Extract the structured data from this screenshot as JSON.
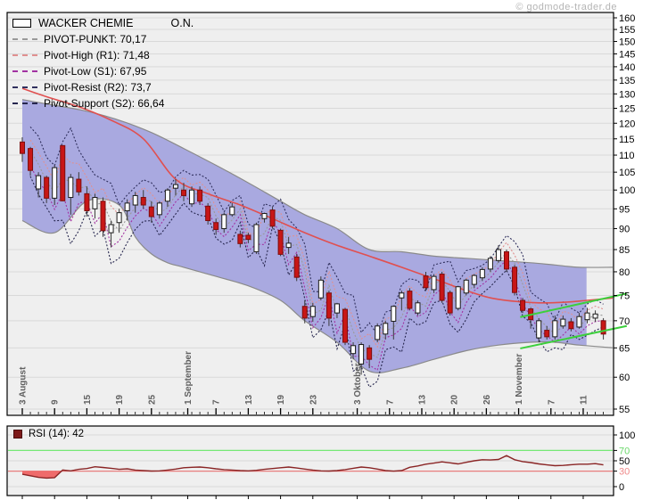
{
  "watermark": "© godmode-trader.de",
  "colors": {
    "panel_bg": "#efefef",
    "panel_border": "#000000",
    "grid": "#d9d9d9",
    "band_fill": "#a9a9e0",
    "band_edge": "#8a8a8a",
    "ma_line": "#e05050",
    "candle_up": "#ffffff",
    "candle_down": "#c81616",
    "candle_stroke": "#1a1a1a",
    "wick": "#3a3a3a",
    "green_trend": "#3ccf3c",
    "pivot_pp": "#9a9a9a",
    "pivot_r1": "#e09090",
    "pivot_s1": "#a232a2",
    "pivot_r2": "#30305e",
    "pivot_s2": "#26264e",
    "rsi_line": "#8a2525",
    "rsi_fill": "#ef6b6b",
    "rsi_line70": "#76e876",
    "rsi_line30": "#e87d7d",
    "rsi_label70": "#6bd96b",
    "rsi_label30": "#ef8a8a",
    "axis_text": "#000000",
    "date_text": "#606060"
  },
  "legend": {
    "title": "WACKER CHEMIE",
    "title_suffix": "O.N.",
    "items": [
      {
        "label": "PIVOT-PUNKT: 70,17",
        "color": "#9a9a9a"
      },
      {
        "label": "Pivot-High (R1): 71,48",
        "color": "#e09090"
      },
      {
        "label": "Pivot-Low (S1): 67,95",
        "color": "#a232a2"
      },
      {
        "label": "Pivot-Resist (R2): 73,7",
        "color": "#30305e"
      },
      {
        "label": "Pivot-Support (S2): 66,64",
        "color": "#26264e"
      }
    ]
  },
  "rsi_legend": "RSI (14): 42",
  "chart_data": [
    {
      "type": "candlestick",
      "title": "WACKER CHEMIE O.N.",
      "y_scale": "log",
      "ylim": [
        55,
        160
      ],
      "y_tick_step": 5,
      "grid": true,
      "x_ticks": [
        {
          "pos": 1,
          "label": "3 August"
        },
        {
          "pos": 5,
          "label": "9"
        },
        {
          "pos": 9,
          "label": "15"
        },
        {
          "pos": 13,
          "label": "19"
        },
        {
          "pos": 17,
          "label": "25"
        },
        {
          "pos": 21.5,
          "label": "1 September"
        },
        {
          "pos": 25,
          "label": "7"
        },
        {
          "pos": 29,
          "label": "13"
        },
        {
          "pos": 33,
          "label": "19"
        },
        {
          "pos": 37,
          "label": "23"
        },
        {
          "pos": 42.5,
          "label": "3 Oktober"
        },
        {
          "pos": 46.5,
          "label": "7"
        },
        {
          "pos": 50.5,
          "label": "13"
        },
        {
          "pos": 54.5,
          "label": "20"
        },
        {
          "pos": 58.5,
          "label": "26"
        },
        {
          "pos": 62.5,
          "label": "1 November"
        },
        {
          "pos": 66.5,
          "label": "7"
        },
        {
          "pos": 70.5,
          "label": "11"
        }
      ],
      "candles": [
        [
          114,
          115.5,
          108,
          110.5
        ],
        [
          112,
          112.5,
          104,
          105.5
        ],
        [
          100.3,
          105,
          98,
          104
        ],
        [
          103.5,
          104,
          96.5,
          97.8
        ],
        [
          97.8,
          107,
          96,
          106.3
        ],
        [
          112.9,
          113,
          97,
          97.1
        ],
        [
          98,
          104.5,
          93.5,
          103.5
        ],
        [
          103,
          105,
          98.5,
          99.5
        ],
        [
          99,
          101,
          93,
          94.5
        ],
        [
          95,
          99,
          92.5,
          98
        ],
        [
          97,
          98,
          88,
          89.5
        ],
        [
          89,
          92,
          85.5,
          91
        ],
        [
          91.5,
          95,
          89,
          94
        ],
        [
          94.5,
          97.5,
          92,
          96.5
        ],
        [
          96,
          99.5,
          94,
          98.5
        ],
        [
          98,
          100,
          95,
          96
        ],
        [
          95.5,
          97,
          91.5,
          93
        ],
        [
          93.5,
          97,
          92.5,
          96.5
        ],
        [
          97,
          100.5,
          95.5,
          100
        ],
        [
          100.5,
          103,
          98.5,
          101.5
        ],
        [
          100,
          102,
          97,
          98.5
        ],
        [
          96.3,
          101,
          95.5,
          100
        ],
        [
          100,
          101,
          96,
          97
        ],
        [
          95.7,
          96.5,
          91,
          92
        ],
        [
          91.5,
          92.5,
          88.5,
          89.8
        ],
        [
          90,
          94,
          89,
          93.5
        ],
        [
          93.5,
          96.5,
          93,
          95.5
        ],
        [
          88.6,
          89.5,
          85.5,
          86.4
        ],
        [
          88.4,
          89,
          86.5,
          87.4
        ],
        [
          84.5,
          91.5,
          84,
          91
        ],
        [
          92.5,
          94,
          91.5,
          93.8
        ],
        [
          94.7,
          95.5,
          90,
          90.6
        ],
        [
          89.6,
          90,
          83.5,
          83.9
        ],
        [
          85.5,
          88,
          84,
          86.5
        ],
        [
          83.3,
          84,
          78,
          78.8
        ],
        [
          72.8,
          74,
          69.5,
          70.5
        ],
        [
          70.8,
          73.5,
          69.8,
          72.8
        ],
        [
          74.5,
          79,
          74,
          78.2
        ],
        [
          75.5,
          76,
          69,
          70.5
        ],
        [
          71.5,
          73.5,
          70.5,
          73.3
        ],
        [
          72.2,
          72.5,
          65.5,
          66
        ],
        [
          64,
          66,
          63,
          65.4
        ],
        [
          62.2,
          66,
          60.4,
          65.6
        ],
        [
          65,
          65.5,
          61.5,
          63
        ],
        [
          66.5,
          69.5,
          66,
          69
        ],
        [
          67.5,
          70,
          66.5,
          69.5
        ],
        [
          69.9,
          73,
          66.5,
          72.8
        ],
        [
          74.5,
          76,
          72,
          75.5
        ],
        [
          75.9,
          76.5,
          72,
          72.4
        ],
        [
          71.5,
          74,
          71,
          73.5
        ],
        [
          79.1,
          80,
          76,
          76.6
        ],
        [
          76.2,
          79.5,
          75.5,
          79
        ],
        [
          79.5,
          80,
          73.5,
          74
        ],
        [
          75.6,
          76,
          71,
          71.5
        ],
        [
          72.4,
          77,
          72,
          76.8
        ],
        [
          75.5,
          78.5,
          75,
          78.2
        ],
        [
          77.3,
          79.5,
          76.5,
          79.2
        ],
        [
          78.7,
          81,
          78,
          80.5
        ],
        [
          80.6,
          83.5,
          80,
          83
        ],
        [
          82.5,
          86,
          82,
          85
        ],
        [
          84.5,
          85,
          80,
          80.6
        ],
        [
          81,
          81.5,
          75,
          75.6
        ],
        [
          74,
          74.5,
          71.5,
          72
        ],
        [
          72.3,
          72.5,
          68.5,
          70.2
        ],
        [
          66.8,
          70.5,
          66,
          70
        ],
        [
          68.2,
          69,
          66.5,
          67
        ],
        [
          67,
          71,
          66.5,
          70
        ],
        [
          69,
          71,
          68.5,
          70.3
        ],
        [
          69.8,
          70.5,
          68,
          68.5
        ],
        [
          68.8,
          71.5,
          68.5,
          70.8
        ],
        [
          70.2,
          72.5,
          69.5,
          71.5
        ],
        [
          70.5,
          72,
          69.8,
          71.3
        ],
        [
          70,
          70.5,
          66.5,
          67.5
        ]
      ],
      "overlays": {
        "pivot_values": {
          "pp": "70,17",
          "r1": "71,48",
          "s1": "67,95",
          "r2": "73,7",
          "s2": "66,64"
        },
        "ma": [
          [
            1,
            132
          ],
          [
            4,
            129
          ],
          [
            8,
            125.5
          ],
          [
            12,
            121
          ],
          [
            16,
            115
          ],
          [
            20,
            103
          ],
          [
            24,
            99
          ],
          [
            28,
            96
          ],
          [
            32,
            92.5
          ],
          [
            36,
            89
          ],
          [
            40,
            86
          ],
          [
            44,
            83.5
          ],
          [
            48,
            81
          ],
          [
            52,
            78.5
          ],
          [
            56,
            76
          ],
          [
            59,
            74.5
          ],
          [
            62,
            73.8
          ],
          [
            65,
            73.5
          ],
          [
            68,
            73.6
          ],
          [
            71,
            74
          ],
          [
            74.3,
            74.5
          ]
        ],
        "band_upper": [
          [
            1,
            128
          ],
          [
            5,
            126
          ],
          [
            9,
            124
          ],
          [
            13,
            121
          ],
          [
            17,
            117
          ],
          [
            21,
            112
          ],
          [
            25,
            107
          ],
          [
            29,
            102
          ],
          [
            33,
            97
          ],
          [
            36,
            93.5
          ],
          [
            40,
            90
          ],
          [
            44,
            85
          ],
          [
            48,
            84.5
          ],
          [
            52,
            83.5
          ],
          [
            56,
            83
          ],
          [
            60,
            82.5
          ],
          [
            64,
            82
          ],
          [
            67,
            81.5
          ],
          [
            70,
            81
          ],
          [
            74.3,
            81
          ]
        ],
        "band_lower": [
          [
            1,
            92
          ],
          [
            5,
            89
          ],
          [
            9,
            97
          ],
          [
            13,
            96
          ],
          [
            15,
            88
          ],
          [
            17,
            84
          ],
          [
            19,
            82
          ],
          [
            21,
            81
          ],
          [
            25,
            79
          ],
          [
            29,
            77
          ],
          [
            33,
            74
          ],
          [
            36,
            70
          ],
          [
            40,
            66
          ],
          [
            44,
            61
          ],
          [
            48,
            61.5
          ],
          [
            52,
            63
          ],
          [
            56,
            64.5
          ],
          [
            60,
            65.5
          ],
          [
            64,
            66
          ],
          [
            67,
            66
          ],
          [
            70,
            65.5
          ],
          [
            74.3,
            65
          ]
        ],
        "band_fill_end_pos": 70.8,
        "green_channel": {
          "upper": [
            [
              62.7,
              70.7
            ],
            [
              75.9,
              75.4
            ]
          ],
          "lower": [
            [
              62.7,
              64.9
            ],
            [
              75.9,
              69.0
            ]
          ]
        }
      }
    },
    {
      "type": "line",
      "title": "RSI (14): 42",
      "ylim": [
        0,
        100
      ],
      "y_ticks": [
        0,
        30,
        50,
        70,
        100
      ],
      "hlines": [
        {
          "v": 70,
          "style": "green"
        },
        {
          "v": 30,
          "style": "red"
        }
      ],
      "fill_below": 30,
      "values": [
        24,
        21,
        18,
        16.5,
        17.5,
        32,
        30.5,
        33.5,
        35,
        38.5,
        37,
        35.5,
        33.5,
        34.5,
        32,
        31,
        30.2,
        30.5,
        32,
        34,
        36.5,
        37.5,
        38,
        36.5,
        34.5,
        33,
        32,
        31,
        30.5,
        31.5,
        33.5,
        35,
        36.5,
        38,
        36,
        34,
        32,
        30.5,
        30.2,
        31,
        33,
        35.5,
        38,
        36.5,
        34,
        31,
        30,
        31,
        37.5,
        40,
        43.5,
        45.5,
        48,
        46,
        44,
        47,
        50,
        52,
        51.5,
        52.5,
        60,
        52,
        48.5,
        46.5,
        44,
        42,
        40.5,
        41,
        42.5,
        43.5,
        43.5,
        44.5,
        42
      ]
    }
  ]
}
